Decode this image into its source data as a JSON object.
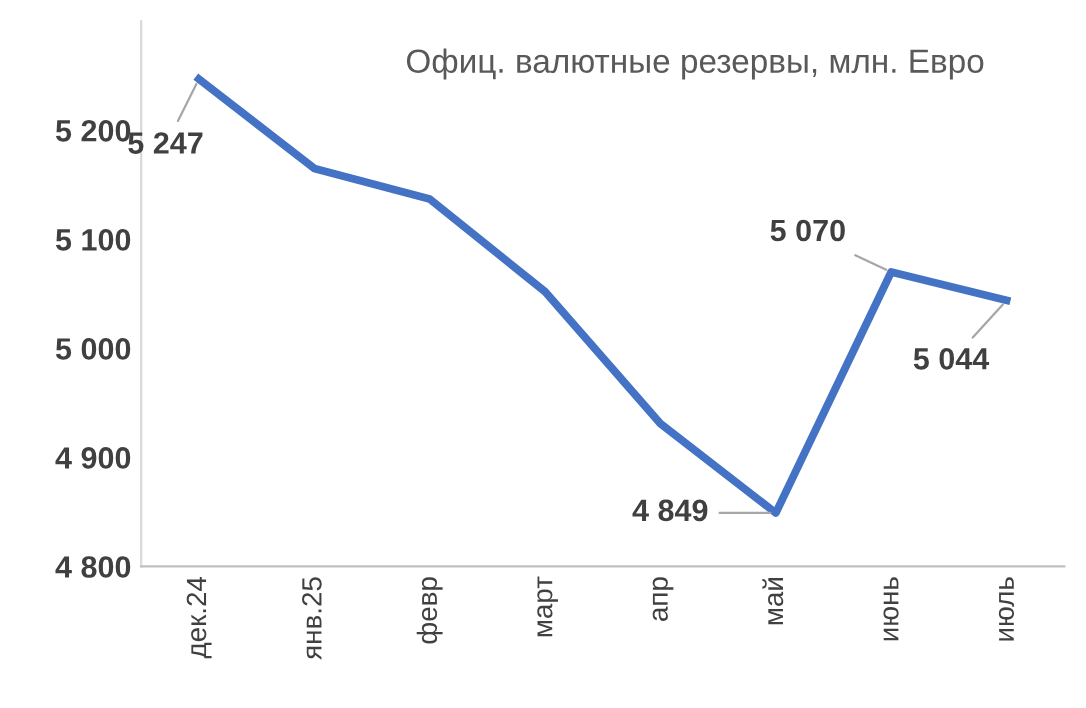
{
  "chart_data": {
    "type": "line",
    "title": "Офиц. валютные резервы, млн. Евро",
    "categories": [
      "дек.24",
      "янв.25",
      "февр",
      "март",
      "апр",
      "май",
      "июнь",
      "июль"
    ],
    "series": [
      {
        "color": "#4472c4",
        "values": [
          5247,
          5165,
          5137,
          5052,
          4931,
          4849,
          5070,
          5044
        ],
        "value_labels": [
          "5 247",
          null,
          null,
          null,
          null,
          "4 849",
          "5 070",
          "5 044"
        ]
      }
    ],
    "ylim": [
      4800,
      5300
    ],
    "yticks": [
      {
        "value": 4800,
        "label": "4 800"
      },
      {
        "value": 4900,
        "label": "4 900"
      },
      {
        "value": 5000,
        "label": "5 000"
      },
      {
        "value": 5100,
        "label": "5 100"
      },
      {
        "value": 5200,
        "label": "5 200"
      }
    ],
    "grid": false,
    "legend": false,
    "marker": "none",
    "line_style": "solid"
  }
}
